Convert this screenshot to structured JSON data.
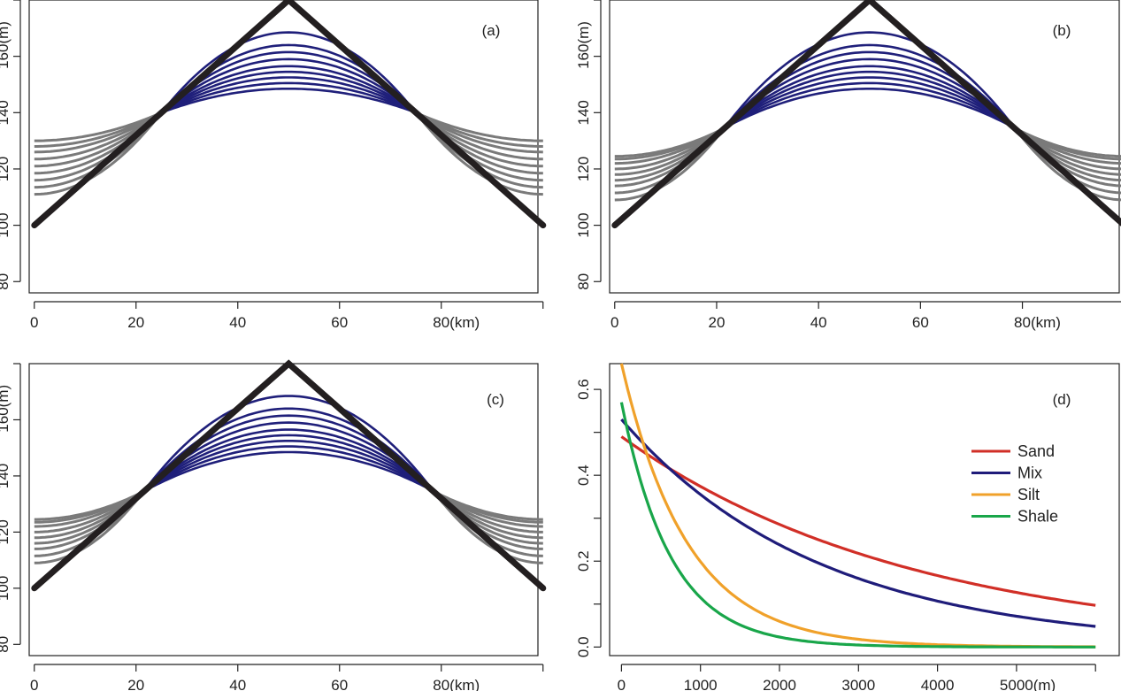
{
  "chart_data": [
    {
      "panel": "(a)",
      "type": "line",
      "x_ticks": [
        "0",
        "20",
        "40",
        "60",
        "80(km)"
      ],
      "y_ticks": [
        "80",
        "100",
        "120",
        "140",
        "160(m)"
      ],
      "xlim": [
        -1,
        99
      ],
      "ylim": [
        76,
        180
      ],
      "profile": {
        "x": [
          0,
          50,
          100
        ],
        "y": [
          100,
          180,
          100
        ],
        "color": "#231f20"
      },
      "junction": {
        "x_left": 25,
        "x_right": 75,
        "y": 140
      },
      "inner_peaks": [
        148.5,
        150.5,
        152.5,
        154.5,
        156.5,
        159,
        161.5,
        164,
        168.5
      ],
      "edge_values": [
        111,
        113.5,
        116,
        118.5,
        121,
        123.5,
        126,
        128,
        130
      ],
      "inner_color": "#1f1f7a",
      "outer_color": "#7a7a7a"
    },
    {
      "panel": "(b)",
      "type": "line",
      "x_ticks": [
        "0",
        "20",
        "40",
        "60",
        "80(km)"
      ],
      "y_ticks": [
        "80",
        "100",
        "120",
        "140",
        "160(m)"
      ],
      "xlim": [
        -1,
        99
      ],
      "ylim": [
        76,
        180
      ],
      "profile": {
        "x": [
          0,
          50,
          100
        ],
        "y": [
          100,
          180,
          100
        ],
        "color": "#231f20"
      },
      "junction": {
        "x_left": 21.5,
        "x_right": 78.5,
        "y": 134.5
      },
      "inner_peaks": [
        148.5,
        150.5,
        152.5,
        154.5,
        156.5,
        159,
        161.5,
        164,
        168.5
      ],
      "edge_values": [
        109,
        111.5,
        114,
        116,
        118,
        120,
        122,
        123.5,
        124.5
      ],
      "inner_color": "#1f1f7a",
      "outer_color": "#7a7a7a"
    },
    {
      "panel": "(c)",
      "type": "line",
      "x_ticks": [
        "0",
        "20",
        "40",
        "60",
        "80(km)"
      ],
      "y_ticks": [
        "80",
        "100",
        "120",
        "140",
        "160(m)"
      ],
      "xlim": [
        -1,
        99
      ],
      "ylim": [
        76,
        180
      ],
      "profile": {
        "x": [
          0,
          50,
          100
        ],
        "y": [
          100,
          180,
          100
        ],
        "color": "#231f20"
      },
      "junction": {
        "x_left": 21.5,
        "x_right": 78.5,
        "y": 134.5
      },
      "inner_peaks": [
        148.5,
        150.5,
        152.5,
        154.5,
        156.5,
        159,
        161.5,
        164,
        168.5
      ],
      "edge_values": [
        109,
        111.5,
        114,
        116,
        118,
        120,
        122,
        123.5,
        124.5
      ],
      "inner_color": "#1f1f7a",
      "outer_color": "#7a7a7a"
    },
    {
      "panel": "(d)",
      "type": "line",
      "x_ticks": [
        "0",
        "1000",
        "2000",
        "3000",
        "4000",
        "5000(m)"
      ],
      "y_ticks": [
        "0.0",
        "0.2",
        "0.4",
        "0.6"
      ],
      "xlim": [
        -150,
        6300
      ],
      "ylim": [
        -0.02,
        0.66
      ],
      "x_domain": [
        0,
        6000
      ],
      "series": [
        {
          "name": "Sand",
          "color": "#d12f27",
          "phi0": 0.49,
          "c": 0.00027
        },
        {
          "name": "Mix",
          "color": "#1f1c7a",
          "phi0": 0.53,
          "c": 0.0004
        },
        {
          "name": "Silt",
          "color": "#f0a12a",
          "phi0": 0.66,
          "c": 0.0012
        },
        {
          "name": "Shale",
          "color": "#19a64a",
          "phi0": 0.57,
          "c": 0.0016
        }
      ],
      "legend_position": "right"
    }
  ]
}
